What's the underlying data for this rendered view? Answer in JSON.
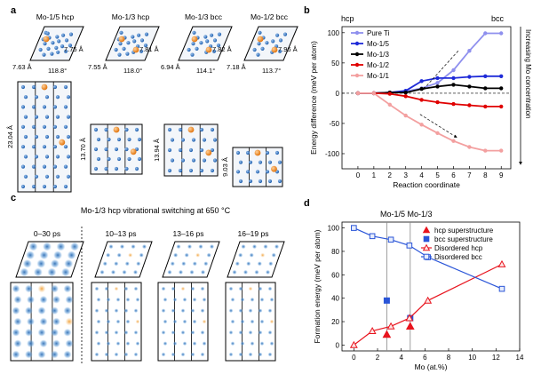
{
  "panel_a": {
    "letter": "a",
    "top_cells": [
      {
        "title": "Mo-1/5 hcp",
        "len_a": "7.63 Å",
        "len_b": "7.75 Å",
        "angle": "118.8°"
      },
      {
        "title": "Mo-1/3 hcp",
        "len_a": "7.55 Å",
        "len_b": "7.81 Å",
        "angle": "118.0°"
      },
      {
        "title": "Mo-1/3 bcc",
        "len_a": "6.94 Å",
        "len_b": "7.82 Å",
        "angle": "114.1°"
      },
      {
        "title": "Mo-1/2 bcc",
        "len_a": "7.18 Å",
        "len_b": "7.96 Å",
        "angle": "113.7°"
      }
    ],
    "side_cells": [
      {
        "height": "23.04 Å"
      },
      {
        "height": "13.70 Å"
      },
      {
        "height": "13.94 Å"
      },
      {
        "height": "9.03 Å"
      }
    ]
  },
  "panel_b": {
    "letter": "b",
    "hcp_label": "hcp",
    "bcc_label": "bcc",
    "right_arrow_label": "Increasing Mo concentration",
    "legend_placement": "top-left"
  },
  "panel_c": {
    "letter": "c",
    "title": "Mo-1/3 hcp vibrational switching at 650 °C",
    "time_labels": [
      "0–30 ps",
      "10–13 ps",
      "13–16 ps",
      "16–19 ps"
    ]
  },
  "panel_d": {
    "letter": "d",
    "vline_label": "Mo-1/5 Mo-1/3",
    "legend_placement": "top-right"
  },
  "chart_data": [
    {
      "type": "line",
      "xlabel": "Reaction coordinate",
      "ylabel": "Energy difference (meV per atom)",
      "xlim": [
        -1,
        9.6
      ],
      "ylim": [
        -125,
        110
      ],
      "xticks": [
        0,
        1,
        2,
        3,
        4,
        5,
        6,
        7,
        8,
        9
      ],
      "yticks": [
        -100,
        -50,
        0,
        50,
        100
      ],
      "x": [
        0,
        1,
        2,
        3,
        4,
        5,
        6,
        7,
        8,
        9
      ],
      "series": [
        {
          "name": "Pure Ti",
          "color": "#8f90ee",
          "values": [
            0,
            0,
            1,
            3,
            8,
            17,
            38,
            70,
            99,
            99
          ]
        },
        {
          "name": "Mo-1/5",
          "color": "#1f2bd8",
          "values": [
            0,
            0,
            1,
            4,
            20,
            25,
            25,
            27,
            28,
            28
          ]
        },
        {
          "name": "Mo-1/3",
          "color": "#000000",
          "values": [
            0,
            0,
            1,
            1,
            7,
            11,
            14,
            11,
            8,
            8
          ]
        },
        {
          "name": "Mo-1/2",
          "color": "#e00000",
          "values": [
            0,
            0,
            -1,
            -5,
            -11,
            -15,
            -18,
            -20,
            -22,
            -22
          ]
        },
        {
          "name": "Mo-1/1",
          "color": "#f3a0a0",
          "values": [
            0,
            0,
            -19,
            -37,
            -52,
            -66,
            -79,
            -89,
            -95,
            -95
          ]
        }
      ],
      "grid": false
    },
    {
      "type": "scatter",
      "xlabel": "Mo (at.%)",
      "ylabel": "Formation energy (meV per atom)",
      "xlim": [
        -1,
        14
      ],
      "ylim": [
        -5,
        105
      ],
      "xticks": [
        0,
        2,
        4,
        6,
        8,
        10,
        12,
        14
      ],
      "yticks": [
        0,
        20,
        40,
        60,
        80,
        100
      ],
      "vlines": [
        2.78,
        4.76
      ],
      "series": [
        {
          "name": "hcp superstructure",
          "color": "#e8141e",
          "marker": "filled-triangle",
          "x": [
            2.78,
            4.76
          ],
          "y": [
            9,
            16
          ]
        },
        {
          "name": "bcc superstructure",
          "color": "#2a55d8",
          "marker": "filled-square",
          "x": [
            2.78,
            4.76
          ],
          "y": [
            38,
            23
          ]
        },
        {
          "name": "Disordered hcp",
          "color": "#e8141e",
          "marker": "open-triangle-line",
          "x": [
            0,
            1.56,
            3.13,
            4.69,
            6.25,
            12.5
          ],
          "y": [
            0,
            12,
            16,
            23,
            38,
            69
          ]
        },
        {
          "name": "Disordered bcc",
          "color": "#2a55d8",
          "marker": "open-square-line",
          "x": [
            0,
            1.56,
            3.13,
            4.69,
            6.25,
            12.5
          ],
          "y": [
            100,
            93,
            90,
            85,
            75,
            48
          ]
        }
      ],
      "grid": false
    }
  ]
}
